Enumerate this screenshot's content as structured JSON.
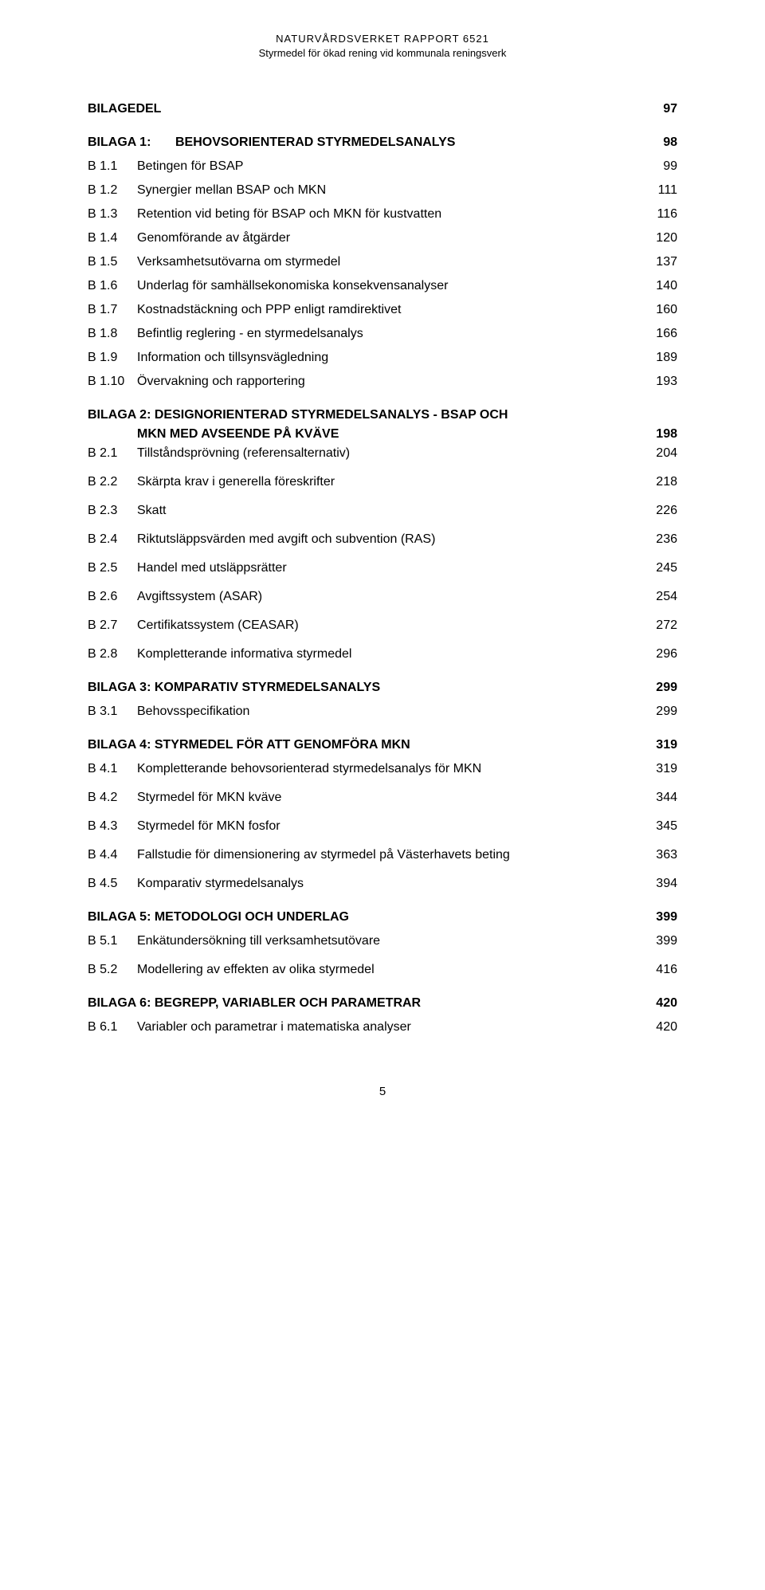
{
  "header": {
    "line1": "NATURVÅRDSVERKET RAPPORT 6521",
    "line2": "Styrmedel för ökad rening vid kommunala reningsverk"
  },
  "toc": {
    "bilagedel": {
      "label": "BILAGEDEL",
      "page": "97"
    },
    "b1": {
      "heading_code": "BILAGA 1:",
      "heading_label": "BEHOVSORIENTERAD STYRMEDELSANALYS",
      "heading_page": "98",
      "items": [
        {
          "code": "B 1.1",
          "label": "Betingen för BSAP",
          "page": "99"
        },
        {
          "code": "B 1.2",
          "label": "Synergier mellan BSAP och MKN",
          "page": "111"
        },
        {
          "code": "B 1.3",
          "label": "Retention vid beting för BSAP och MKN för kustvatten",
          "page": "116"
        },
        {
          "code": "B 1.4",
          "label": "Genomförande av åtgärder",
          "page": "120"
        },
        {
          "code": "B 1.5",
          "label": "Verksamhetsutövarna om styrmedel",
          "page": "137"
        },
        {
          "code": "B 1.6",
          "label": "Underlag för samhällsekonomiska konsekvensanalyser",
          "page": "140"
        },
        {
          "code": "B 1.7",
          "label": "Kostnadstäckning och PPP enligt ramdirektivet",
          "page": "160"
        },
        {
          "code": "B 1.8",
          "label": "Befintlig reglering - en styrmedelsanalys",
          "page": "166"
        },
        {
          "code": "B 1.9",
          "label": "Information och tillsynsvägledning",
          "page": "189"
        },
        {
          "code": "B 1.10",
          "label": "Övervakning och rapportering",
          "page": "193"
        }
      ]
    },
    "b2": {
      "heading_line1": "BILAGA 2: DESIGNORIENTERAD STYRMEDELSANALYS - BSAP OCH",
      "heading_line2": "MKN MED AVSEENDE PÅ KVÄVE",
      "heading_page": "198",
      "items": [
        {
          "code": "B 2.1",
          "label": "Tillståndsprövning (referensalternativ)",
          "page": "204"
        },
        {
          "code": "B 2.2",
          "label": "Skärpta krav i generella föreskrifter",
          "page": "218"
        },
        {
          "code": "B 2.3",
          "label": "Skatt",
          "page": "226"
        },
        {
          "code": "B 2.4",
          "label": "Riktutsläppsvärden med avgift och subvention (RAS)",
          "page": "236"
        },
        {
          "code": "B 2.5",
          "label": "Handel med utsläppsrätter",
          "page": "245"
        },
        {
          "code": "B 2.6",
          "label": "Avgiftssystem (ASAR)",
          "page": "254"
        },
        {
          "code": "B 2.7",
          "label": "Certifikatssystem (CEASAR)",
          "page": "272"
        },
        {
          "code": "B 2.8",
          "label": "Kompletterande informativa styrmedel",
          "page": "296"
        }
      ]
    },
    "b3": {
      "heading_label": "BILAGA 3: KOMPARATIV STYRMEDELSANALYS",
      "heading_page": "299",
      "items": [
        {
          "code": "B 3.1",
          "label": "Behovsspecifikation",
          "page": "299"
        }
      ]
    },
    "b4": {
      "heading_label": "BILAGA 4: STYRMEDEL FÖR ATT GENOMFÖRA MKN",
      "heading_page": "319",
      "items": [
        {
          "code": "B 4.1",
          "label": "Kompletterande behovsorienterad styrmedelsanalys för MKN",
          "page": "319"
        },
        {
          "code": "B 4.2",
          "label": "Styrmedel för MKN kväve",
          "page": "344"
        },
        {
          "code": "B 4.3",
          "label": "Styrmedel för MKN fosfor",
          "page": "345"
        },
        {
          "code": "B 4.4",
          "label": "Fallstudie för dimensionering av styrmedel på Västerhavets beting",
          "page": "363"
        },
        {
          "code": "B 4.5",
          "label": "Komparativ styrmedelsanalys",
          "page": "394"
        }
      ]
    },
    "b5": {
      "heading_label": "BILAGA 5: METODOLOGI OCH UNDERLAG",
      "heading_page": "399",
      "items": [
        {
          "code": "B 5.1",
          "label": "Enkätundersökning till verksamhetsutövare",
          "page": "399"
        },
        {
          "code": "B 5.2",
          "label": "Modellering av effekten av olika styrmedel",
          "page": "416"
        }
      ]
    },
    "b6": {
      "heading_label": "BILAGA 6: BEGREPP, VARIABLER OCH PARAMETRAR",
      "heading_page": "420",
      "items": [
        {
          "code": "B 6.1",
          "label": "Variabler och parametrar i matematiska analyser",
          "page": "420"
        }
      ]
    }
  },
  "page_number": "5"
}
